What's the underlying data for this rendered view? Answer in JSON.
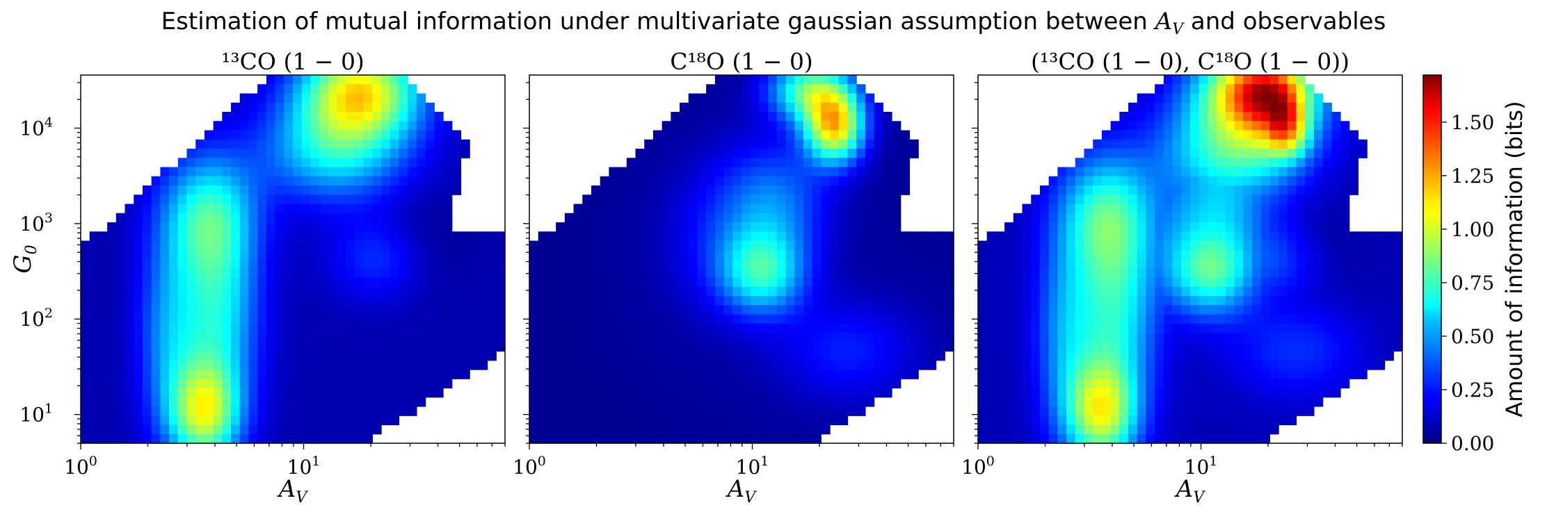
{
  "figure": {
    "title": "Estimation of mutual information under multivariate gaussian assumption between A_V and observables",
    "title_prefix": "Estimation of mutual information under multivariate gaussian assumption between ",
    "title_var": "A",
    "title_var_sub": "V",
    "title_suffix": " and observables"
  },
  "panels": [
    {
      "title": "¹³CO (1 − 0)",
      "ylabel": "G",
      "ylabel_sub": "0",
      "xlabel": "A",
      "xlabel_sub": "V"
    },
    {
      "title": "C¹⁸O (1 − 0)",
      "ylabel": "",
      "ylabel_sub": "",
      "xlabel": "A",
      "xlabel_sub": "V"
    },
    {
      "title": "(¹³CO (1 − 0), C¹⁸O (1 − 0))",
      "ylabel": "",
      "ylabel_sub": "",
      "xlabel": "A",
      "xlabel_sub": "V"
    }
  ],
  "colorbar": {
    "label": "Amount of information (bits)",
    "colormap": "jet",
    "range": [
      0,
      1.72
    ],
    "ticks": [
      "0.00",
      "0.25",
      "0.50",
      "0.75",
      "1.00",
      "1.25",
      "1.50"
    ],
    "tick_values": [
      0,
      0.25,
      0.5,
      0.75,
      1.0,
      1.25,
      1.5
    ]
  },
  "chart_data": [
    {
      "type": "heatmap",
      "title": "¹³CO (1 − 0)",
      "xlabel": "A_V",
      "ylabel": "G_0",
      "xscale": "log",
      "yscale": "log",
      "xlim": [
        1,
        80
      ],
      "ylim": [
        5,
        36000
      ],
      "x_ticks": [
        "10^0",
        "10^1"
      ],
      "y_ticks": [
        "10^1",
        "10^2",
        "10^3",
        "10^4"
      ],
      "value_range": [
        0,
        1.72
      ],
      "hotspots": [
        {
          "A_V": 3.6,
          "G_0": 8,
          "value": 0.95
        },
        {
          "A_V": 5.5,
          "G_0": 1000,
          "value": 0.7
        },
        {
          "A_V": 17,
          "G_0": 22000,
          "value": 1.0
        },
        {
          "A_V": 13,
          "G_0": 6000,
          "value": 0.7
        }
      ]
    },
    {
      "type": "heatmap",
      "title": "C¹⁸O (1 − 0)",
      "xlabel": "A_V",
      "ylabel": "G_0",
      "xscale": "log",
      "yscale": "log",
      "xlim": [
        1,
        80
      ],
      "ylim": [
        5,
        36000
      ],
      "x_ticks": [
        "10^0",
        "10^1"
      ],
      "y_ticks": [
        "10^1",
        "10^2",
        "10^3",
        "10^4"
      ],
      "value_range": [
        0,
        1.72
      ],
      "hotspots": [
        {
          "A_V": 23,
          "G_0": 10000,
          "value": 1.1
        },
        {
          "A_V": 11,
          "G_0": 250,
          "value": 0.65
        },
        {
          "A_V": 19,
          "G_0": 30000,
          "value": 0.9
        }
      ]
    },
    {
      "type": "heatmap",
      "title": "(¹³CO (1 − 0), C¹⁸O (1 − 0))",
      "xlabel": "A_V",
      "ylabel": "G_0",
      "xscale": "log",
      "yscale": "log",
      "xlim": [
        1,
        80
      ],
      "ylim": [
        5,
        36000
      ],
      "x_ticks": [
        "10^0",
        "10^1"
      ],
      "y_ticks": [
        "10^1",
        "10^2",
        "10^3",
        "10^4"
      ],
      "value_range": [
        0,
        1.72
      ],
      "hotspots": [
        {
          "A_V": 3.6,
          "G_0": 8,
          "value": 0.95
        },
        {
          "A_V": 5.5,
          "G_0": 1000,
          "value": 0.7
        },
        {
          "A_V": 21,
          "G_0": 25000,
          "value": 1.45
        },
        {
          "A_V": 20,
          "G_0": 8000,
          "value": 1.1
        }
      ]
    }
  ]
}
